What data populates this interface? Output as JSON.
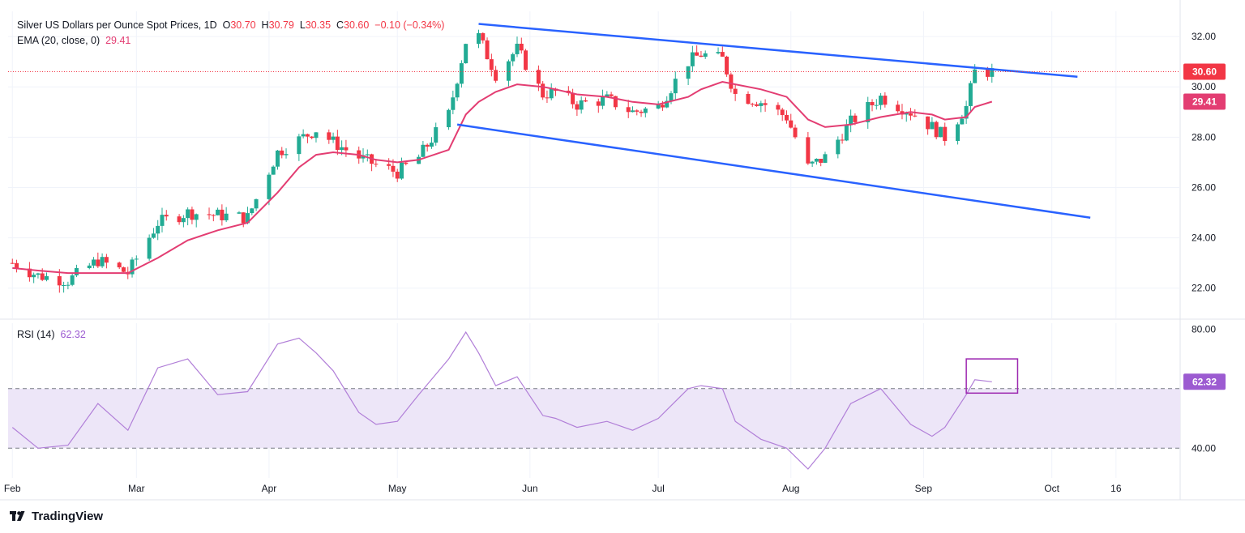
{
  "header": {
    "title": "Silver US Dollars per Ounce Spot Prices, 1D",
    "o_label": "O",
    "o_value": "30.70",
    "h_label": "H",
    "h_value": "30.79",
    "l_label": "L",
    "l_value": "30.35",
    "c_label": "C",
    "c_value": "30.60",
    "change": "−0.10 (−0.34%)",
    "ema_label": "EMA (20, close, 0)",
    "ema_value": "29.41",
    "rsi_label": "RSI (14)",
    "rsi_value": "62.32"
  },
  "footer": {
    "brand": "TradingView"
  },
  "colors": {
    "up": "#22ab94",
    "down": "#f23645",
    "ema": "#e33d72",
    "channel": "#2962ff",
    "rsi": "#b17fd8",
    "rsi_band": "#ede6f8",
    "box": "#9c27b0",
    "price_tag": "#f23645",
    "ema_tag": "#e33d72",
    "rsi_tag": "#9c5bd1"
  },
  "chart_data": [
    {
      "type": "candlestick",
      "title": "Silver US Dollars per Ounce Spot Prices, 1D",
      "x_tick_labels": [
        "Feb",
        "Mar",
        "Apr",
        "May",
        "Jun",
        "Jul",
        "Aug",
        "Sep",
        "Oct",
        "16"
      ],
      "y_tick_labels": [
        "22.00",
        "24.00",
        "26.00",
        "28.00",
        "30.00",
        "32.00"
      ],
      "ylim": [
        20.8,
        33.0
      ],
      "last_price": 30.6,
      "ema_last": 29.41,
      "x": [
        "2024-02-01",
        "2024-02-07",
        "2024-02-14",
        "2024-02-21",
        "2024-02-28",
        "2024-03-06",
        "2024-03-13",
        "2024-03-20",
        "2024-03-27",
        "2024-04-03",
        "2024-04-08",
        "2024-04-12",
        "2024-04-16",
        "2024-04-22",
        "2024-04-26",
        "2024-05-01",
        "2024-05-06",
        "2024-05-13",
        "2024-05-17",
        "2024-05-20",
        "2024-05-24",
        "2024-05-29",
        "2024-06-04",
        "2024-06-07",
        "2024-06-12",
        "2024-06-19",
        "2024-06-25",
        "2024-07-01",
        "2024-07-08",
        "2024-07-11",
        "2024-07-16",
        "2024-07-19",
        "2024-07-25",
        "2024-07-31",
        "2024-08-05",
        "2024-08-09",
        "2024-08-15",
        "2024-08-22",
        "2024-08-29",
        "2024-09-03",
        "2024-09-06",
        "2024-09-11",
        "2024-09-13",
        "2024-09-17"
      ],
      "close": [
        23.0,
        22.5,
        22.3,
        23.1,
        22.6,
        24.6,
        25.0,
        24.9,
        24.8,
        27.4,
        27.9,
        28.3,
        27.8,
        27.2,
        26.9,
        26.6,
        27.2,
        28.9,
        31.8,
        32.0,
        30.5,
        31.5,
        29.7,
        29.8,
        29.3,
        29.5,
        29.0,
        29.2,
        31.0,
        31.3,
        31.1,
        29.7,
        29.4,
        28.8,
        26.8,
        27.2,
        28.6,
        29.6,
        29.0,
        28.4,
        28.0,
        29.2,
        30.6,
        30.6
      ],
      "ema": [
        22.8,
        22.7,
        22.6,
        22.6,
        22.6,
        23.2,
        23.9,
        24.3,
        24.6,
        25.8,
        26.8,
        27.3,
        27.4,
        27.3,
        27.1,
        27.0,
        27.1,
        27.5,
        28.9,
        29.4,
        29.8,
        30.1,
        30.0,
        29.9,
        29.7,
        29.6,
        29.4,
        29.3,
        29.6,
        29.9,
        30.2,
        30.1,
        29.9,
        29.6,
        28.7,
        28.4,
        28.5,
        28.8,
        29.0,
        28.9,
        28.7,
        28.8,
        29.2,
        29.41
      ],
      "channel": {
        "upper": [
          {
            "x": "2024-05-20",
            "y": 32.5
          },
          {
            "x": "2024-10-07",
            "y": 30.4
          }
        ],
        "lower": [
          {
            "x": "2024-05-15",
            "y": 28.5
          },
          {
            "x": "2024-10-10",
            "y": 24.8
          }
        ]
      }
    },
    {
      "type": "line",
      "title": "RSI (14)",
      "y_tick_labels": [
        "40.00",
        "80.00"
      ],
      "band": [
        40,
        60
      ],
      "ylim": [
        30,
        82
      ],
      "last_value": 62.32,
      "x": [
        "2024-02-01",
        "2024-02-07",
        "2024-02-14",
        "2024-02-21",
        "2024-02-28",
        "2024-03-06",
        "2024-03-13",
        "2024-03-20",
        "2024-03-27",
        "2024-04-03",
        "2024-04-08",
        "2024-04-12",
        "2024-04-16",
        "2024-04-22",
        "2024-04-26",
        "2024-05-01",
        "2024-05-06",
        "2024-05-13",
        "2024-05-17",
        "2024-05-20",
        "2024-05-24",
        "2024-05-29",
        "2024-06-04",
        "2024-06-07",
        "2024-06-12",
        "2024-06-19",
        "2024-06-25",
        "2024-07-01",
        "2024-07-08",
        "2024-07-11",
        "2024-07-16",
        "2024-07-19",
        "2024-07-25",
        "2024-07-31",
        "2024-08-05",
        "2024-08-09",
        "2024-08-15",
        "2024-08-22",
        "2024-08-29",
        "2024-09-03",
        "2024-09-06",
        "2024-09-11",
        "2024-09-13",
        "2024-09-17"
      ],
      "values": [
        47,
        40,
        41,
        55,
        46,
        67,
        70,
        58,
        59,
        75,
        77,
        72,
        66,
        52,
        48,
        49,
        58,
        70,
        79,
        72,
        61,
        64,
        51,
        50,
        47,
        49,
        46,
        50,
        60,
        61,
        60,
        49,
        43,
        40,
        33,
        40,
        55,
        60,
        48,
        44,
        47,
        58,
        63,
        62.32
      ]
    }
  ]
}
